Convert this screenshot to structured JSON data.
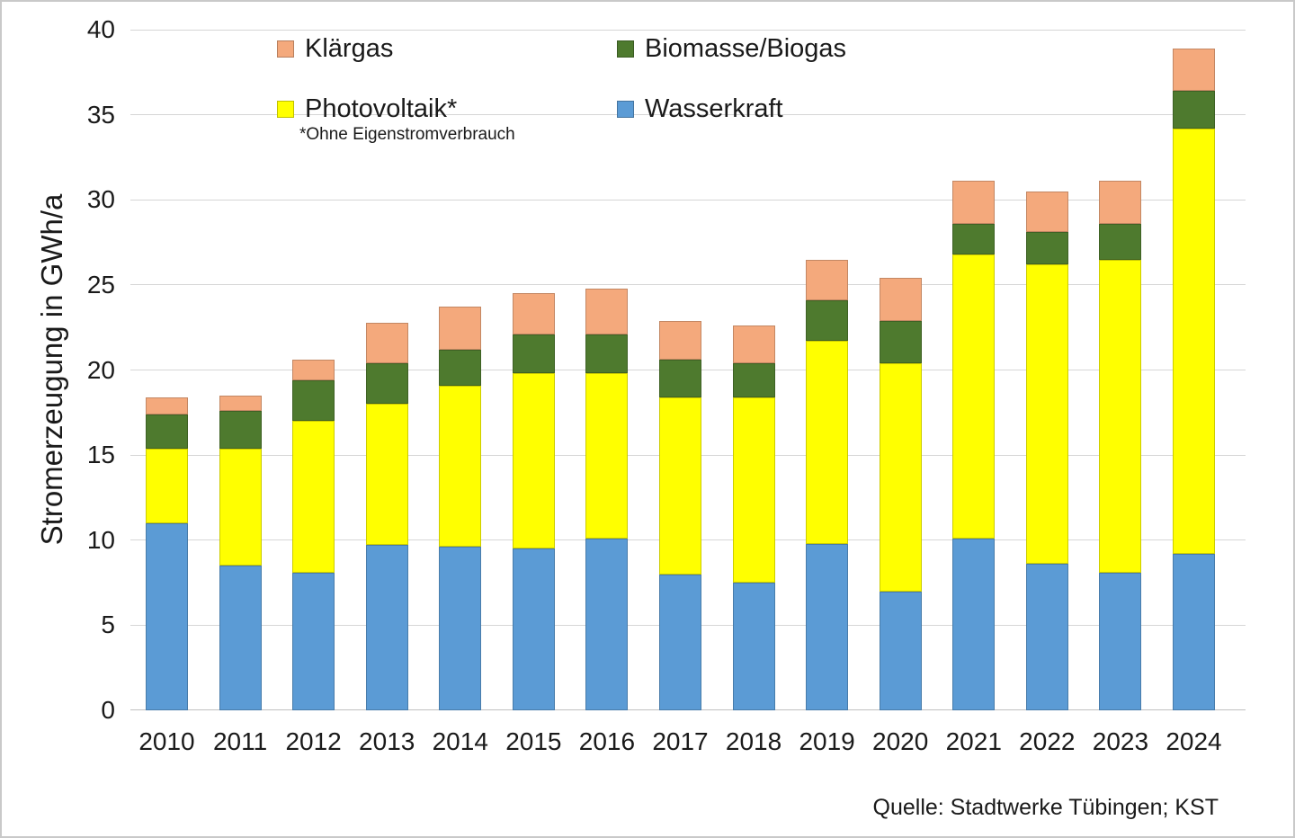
{
  "chart_data": {
    "type": "bar",
    "subtype": "stacked",
    "title": "",
    "xlabel": "",
    "ylabel": "Stromerzeugung in GWh/a",
    "ylim": [
      0,
      40
    ],
    "ytick_step": 5,
    "yticks": [
      "0",
      "5",
      "10",
      "15",
      "20",
      "25",
      "30",
      "35",
      "40"
    ],
    "grid": true,
    "categories": [
      "2010",
      "2011",
      "2012",
      "2013",
      "2014",
      "2015",
      "2016",
      "2017",
      "2018",
      "2019",
      "2020",
      "2021",
      "2022",
      "2023",
      "2024"
    ],
    "series": [
      {
        "name": "Wasserkraft",
        "color": "#5B9BD5",
        "values": [
          11.0,
          8.5,
          8.1,
          9.7,
          9.6,
          9.5,
          10.1,
          8.0,
          7.5,
          9.8,
          7.0,
          10.1,
          8.6,
          8.1,
          9.2
        ]
      },
      {
        "name": "Photovoltaik*",
        "color": "#FFFF00",
        "values": [
          4.4,
          6.9,
          8.9,
          8.3,
          9.5,
          10.3,
          9.7,
          10.4,
          10.9,
          11.9,
          13.4,
          16.7,
          17.6,
          18.4,
          25.0
        ]
      },
      {
        "name": "Biomasse/Biogas",
        "color": "#4E7A2E",
        "values": [
          2.0,
          2.2,
          2.4,
          2.4,
          2.1,
          2.3,
          2.3,
          2.2,
          2.0,
          2.4,
          2.5,
          1.8,
          1.9,
          2.1,
          2.2
        ]
      },
      {
        "name": "Klärgas",
        "color": "#F4A97C",
        "values": [
          1.0,
          0.9,
          1.2,
          2.4,
          2.5,
          2.4,
          2.7,
          2.3,
          2.2,
          2.4,
          2.5,
          2.5,
          2.4,
          2.5,
          2.5
        ]
      }
    ],
    "stack_order": "bottom-to-top",
    "legend_position": "top-inside",
    "legend": [
      {
        "label": "Klärgas",
        "color": "#F4A97C",
        "col": 0,
        "row": 0
      },
      {
        "label": "Biomasse/Biogas",
        "color": "#4E7A2E",
        "col": 1,
        "row": 0
      },
      {
        "label": "Photovoltaik*",
        "color": "#FFFF00",
        "col": 0,
        "row": 1
      },
      {
        "label": "Wasserkraft",
        "color": "#5B9BD5",
        "col": 1,
        "row": 1
      }
    ],
    "legend_footnote": "*Ohne Eigenstromverbrauch",
    "source": "Quelle: Stadtwerke Tübingen; KST"
  }
}
